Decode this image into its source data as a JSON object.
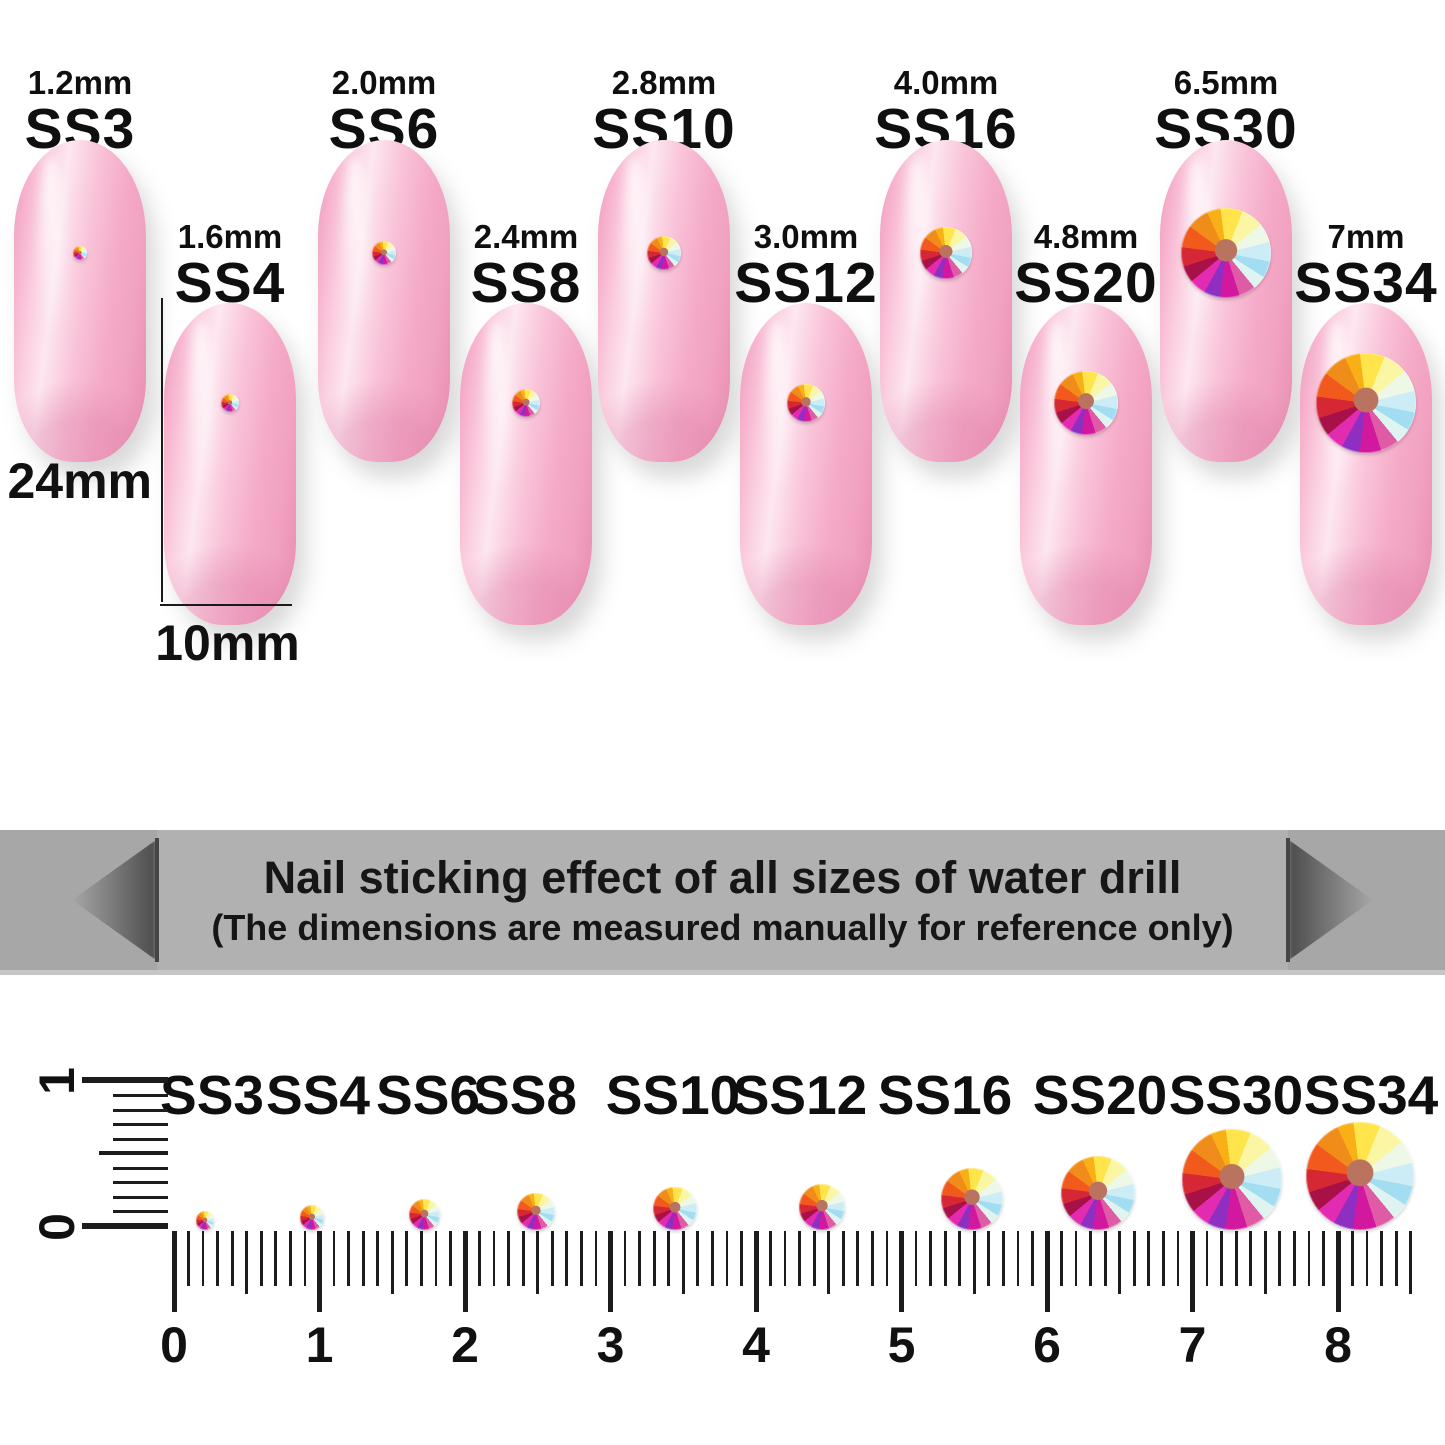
{
  "nails_section": {
    "height_label": "24mm",
    "width_label": "10mm",
    "items": [
      {
        "code": "SS3",
        "size": "1.2mm",
        "mm": 1.2
      },
      {
        "code": "SS4",
        "size": "1.6mm",
        "mm": 1.6
      },
      {
        "code": "SS6",
        "size": "2.0mm",
        "mm": 2.0
      },
      {
        "code": "SS8",
        "size": "2.4mm",
        "mm": 2.4
      },
      {
        "code": "SS10",
        "size": "2.8mm",
        "mm": 2.8
      },
      {
        "code": "SS12",
        "size": "3.0mm",
        "mm": 3.0
      },
      {
        "code": "SS16",
        "size": "4.0mm",
        "mm": 4.0
      },
      {
        "code": "SS20",
        "size": "4.8mm",
        "mm": 4.8
      },
      {
        "code": "SS30",
        "size": "6.5mm",
        "mm": 6.5
      },
      {
        "code": "SS34",
        "size": "7mm",
        "mm": 7.0
      }
    ]
  },
  "banner": {
    "title": "Nail sticking effect of all sizes of water drill",
    "subtitle": "(The dimensions are measured manually for reference only)",
    "background": "#a7a7a7",
    "inner_background": "#b1b1b1",
    "text_color": "#161616"
  },
  "ruler_section": {
    "cm_numbers": [
      "0",
      "1",
      "2",
      "3",
      "4",
      "5",
      "6",
      "7",
      "8"
    ],
    "vertical_numbers": [
      "1",
      "0"
    ]
  },
  "colors": {
    "nail_pink": "#f7b0cb",
    "gem_center": "#b9735e",
    "tick_black": "#1c1c1c",
    "text_black": "#111111"
  }
}
